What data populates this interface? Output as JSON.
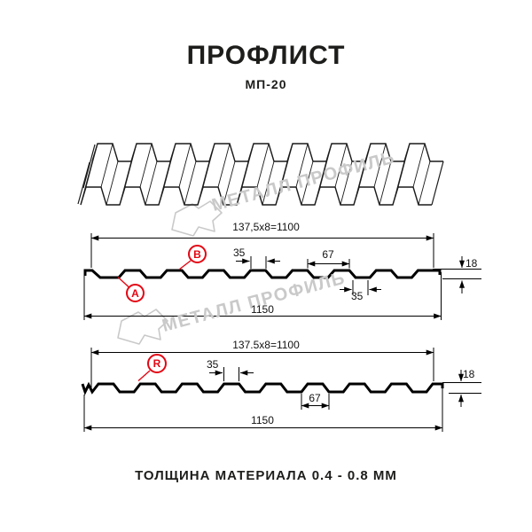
{
  "header": {
    "title": "ПРОФЛИСТ",
    "subtitle": "МП-20"
  },
  "watermark": {
    "text": "МЕТАЛЛ ПРОФИЛЬ"
  },
  "sections": {
    "top": {
      "working_width": "137,5x8=1100",
      "rib_top_width": "35",
      "rib_spacing": "67",
      "profile_height": "18",
      "rib_bottom_width": "35",
      "total_width": "1150",
      "callout_a": "А",
      "callout_b": "B"
    },
    "bottom": {
      "working_width": "137.5x8=1100",
      "rib_top_width": "35",
      "rib_spacing": "67",
      "profile_height": "18",
      "total_width": "1150",
      "callout_r": "R"
    }
  },
  "footer": {
    "material_thickness": "ТОЛЩИНА МАТЕРИАЛА 0.4 - 0.8 ММ"
  },
  "colors": {
    "accent_red": "#e30613",
    "line_black": "#000000",
    "text_dark": "#1d1d1b",
    "watermark_gray": "#c9c9c9"
  }
}
